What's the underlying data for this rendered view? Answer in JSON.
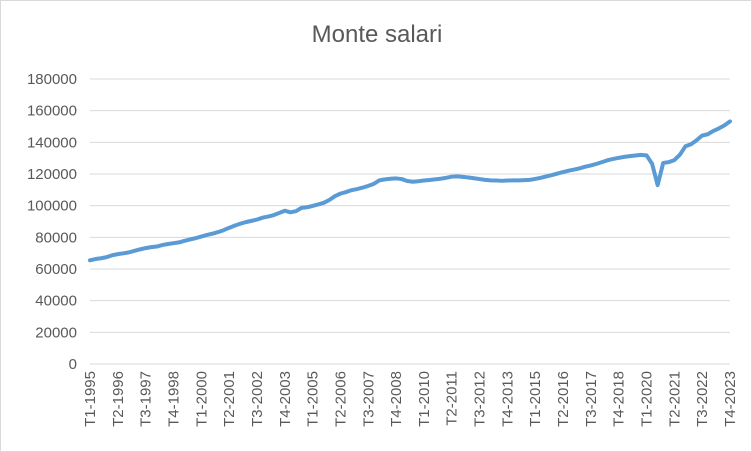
{
  "chart_data": {
    "type": "line",
    "title": "Monte salari",
    "xlabel": "",
    "ylabel": "",
    "ylim": [
      0,
      180000
    ],
    "y_ticks": [
      "0",
      "20000",
      "40000",
      "60000",
      "80000",
      "100000",
      "120000",
      "140000",
      "160000",
      "180000"
    ],
    "y_tick_values": [
      0,
      20000,
      40000,
      60000,
      80000,
      100000,
      120000,
      140000,
      160000,
      180000
    ],
    "grid": true,
    "legend": "none",
    "x_tick_labels": [
      "T1-1995",
      "T2-1996",
      "T3-1997",
      "T4-1998",
      "T1-2000",
      "T2-2001",
      "T3-2002",
      "T4-2003",
      "T1-2005",
      "T2-2006",
      "T3-2007",
      "T4-2008",
      "T1-2010",
      "T2-2011",
      "T3-2012",
      "T4-2013",
      "T1-2015",
      "T2-2016",
      "T3-2017",
      "T4-2018",
      "T1-2020",
      "T2-2021",
      "T3-2022",
      "T4-2023"
    ],
    "x_range": [
      "T1-1995",
      "T4-2023"
    ],
    "series": [
      {
        "name": "",
        "color": "#5b9bd5",
        "x": [
          "T1-1995",
          "T2-1995",
          "T3-1995",
          "T4-1995",
          "T1-1996",
          "T2-1996",
          "T3-1996",
          "T4-1996",
          "T1-1997",
          "T2-1997",
          "T3-1997",
          "T4-1997",
          "T1-1998",
          "T2-1998",
          "T3-1998",
          "T4-1998",
          "T1-1999",
          "T2-1999",
          "T3-1999",
          "T4-1999",
          "T1-2000",
          "T2-2000",
          "T3-2000",
          "T4-2000",
          "T1-2001",
          "T2-2001",
          "T3-2001",
          "T4-2001",
          "T1-2002",
          "T2-2002",
          "T3-2002",
          "T4-2002",
          "T1-2003",
          "T2-2003",
          "T3-2003",
          "T4-2003",
          "T1-2004",
          "T2-2004",
          "T3-2004",
          "T4-2004",
          "T1-2005",
          "T2-2005",
          "T3-2005",
          "T4-2005",
          "T1-2006",
          "T2-2006",
          "T3-2006",
          "T4-2006",
          "T1-2007",
          "T2-2007",
          "T3-2007",
          "T4-2007",
          "T1-2008",
          "T2-2008",
          "T3-2008",
          "T4-2008",
          "T1-2009",
          "T2-2009",
          "T3-2009",
          "T4-2009",
          "T1-2010",
          "T2-2010",
          "T3-2010",
          "T4-2010",
          "T1-2011",
          "T2-2011",
          "T3-2011",
          "T4-2011",
          "T1-2012",
          "T2-2012",
          "T3-2012",
          "T4-2012",
          "T1-2013",
          "T2-2013",
          "T3-2013",
          "T4-2013",
          "T1-2014",
          "T2-2014",
          "T3-2014",
          "T4-2014",
          "T1-2015",
          "T2-2015",
          "T3-2015",
          "T4-2015",
          "T1-2016",
          "T2-2016",
          "T3-2016",
          "T4-2016",
          "T1-2017",
          "T2-2017",
          "T3-2017",
          "T4-2017",
          "T1-2018",
          "T2-2018",
          "T3-2018",
          "T4-2018",
          "T1-2019",
          "T2-2019",
          "T3-2019",
          "T4-2019",
          "T1-2020",
          "T2-2020",
          "T3-2020",
          "T4-2020",
          "T1-2021",
          "T2-2021",
          "T3-2021",
          "T4-2021",
          "T1-2022",
          "T2-2022",
          "T3-2022",
          "T4-2022",
          "T1-2023",
          "T2-2023",
          "T3-2023",
          "T4-2023"
        ],
        "values": [
          65500,
          66300,
          66800,
          67500,
          68700,
          69400,
          69900,
          70500,
          71500,
          72400,
          73200,
          73800,
          74200,
          75100,
          75800,
          76300,
          76800,
          77800,
          78700,
          79500,
          80500,
          81500,
          82300,
          83300,
          84500,
          86000,
          87400,
          88600,
          89600,
          90400,
          91200,
          92400,
          93100,
          94000,
          95400,
          96800,
          95800,
          96500,
          98600,
          99000,
          99800,
          100800,
          101800,
          103600,
          106000,
          107600,
          108600,
          109800,
          110500,
          111400,
          112500,
          113800,
          116000,
          116600,
          117000,
          117200,
          116800,
          115600,
          115100,
          115400,
          115900,
          116200,
          116600,
          117000,
          117600,
          118300,
          118500,
          118200,
          117800,
          117300,
          116800,
          116300,
          116000,
          115900,
          115700,
          115900,
          116000,
          116000,
          116100,
          116300,
          116900,
          117600,
          118500,
          119300,
          120300,
          121200,
          122100,
          122800,
          123600,
          124600,
          125400,
          126400,
          127500,
          128700,
          129500,
          130200,
          130800,
          131300,
          131700,
          132100,
          131800,
          126500,
          113000,
          127000,
          127500,
          128800,
          132200,
          137500,
          138800,
          141300,
          144300,
          145100,
          147200,
          148800,
          150700,
          153200
        ]
      }
    ]
  }
}
